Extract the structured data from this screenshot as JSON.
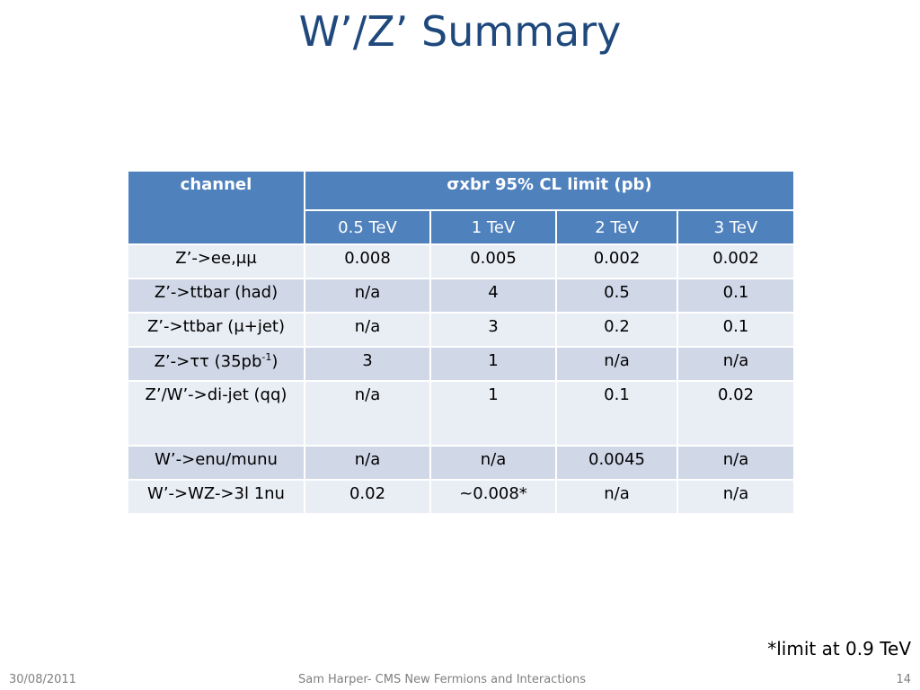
{
  "title": "W’/Z’ Summary",
  "table": {
    "header": {
      "channel": "channel",
      "limit": "σxbr 95% CL limit (pb)",
      "masses": [
        "0.5 TeV",
        "1 TeV",
        "2 TeV",
        "3 TeV"
      ]
    },
    "rows": [
      {
        "channel": "Z’->ee,μμ",
        "values": [
          "0.008",
          "0.005",
          "0.002",
          "0.002"
        ]
      },
      {
        "channel": "Z’->ttbar (had)",
        "values": [
          "n/a",
          "4",
          "0.5",
          "0.1"
        ]
      },
      {
        "channel": "Z’->ttbar (μ+jet)",
        "values": [
          "n/a",
          "3",
          "0.2",
          "0.1"
        ]
      },
      {
        "channel": [
          "Z’->ττ (35pb",
          "-1",
          ")"
        ],
        "values": [
          "3",
          "1",
          "n/a",
          "n/a"
        ]
      },
      {
        "channel": "Z’/W’->di-jet (qq)",
        "values": [
          "n/a",
          "1",
          "0.1",
          "0.02"
        ]
      },
      {
        "channel": "W’->enu/munu",
        "values": [
          "n/a",
          "n/a",
          "0.0045",
          "n/a"
        ]
      },
      {
        "channel": "W’->WZ->3l 1nu",
        "values": [
          "0.02",
          "~0.008*",
          "n/a",
          "n/a"
        ]
      }
    ]
  },
  "footnote": "*limit at 0.9 TeV",
  "footer": {
    "date": "30/08/2011",
    "center": "Sam Harper- CMS New Fermions and Interactions",
    "page": "14"
  }
}
